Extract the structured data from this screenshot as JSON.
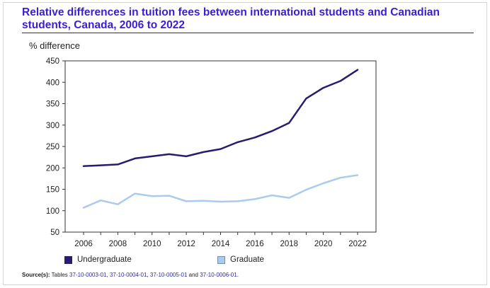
{
  "title": "Relative differences in tuition fees between international students and Canadian students, Canada, 2006 to 2022",
  "y_axis_label": "% difference",
  "legend": {
    "undergraduate": "Undergraduate",
    "graduate": "Graduate"
  },
  "source": {
    "label": "Source(s):",
    "prefix": "Tables",
    "table_1": "37-10-0003-01",
    "sep_1": ",",
    "table_2": "37-10-0004-01",
    "sep_2": ",",
    "table_3": "37-10-0005-01",
    "sep_3": "and",
    "table_4": "37-10-0006-01",
    "end": "."
  },
  "colors": {
    "undergraduate": "#2b1a6e",
    "graduate": "#a9cbee",
    "title": "#3d1dd6"
  },
  "chart_data": {
    "type": "line",
    "title": "Relative differences in tuition fees between international students and Canadian students, Canada, 2006 to 2022",
    "ylabel": "% difference",
    "xlabel": "",
    "x": [
      2006,
      2007,
      2008,
      2009,
      2010,
      2011,
      2012,
      2013,
      2014,
      2015,
      2016,
      2017,
      2018,
      2019,
      2020,
      2021,
      2022
    ],
    "x_ticks": [
      2006,
      2008,
      2010,
      2012,
      2014,
      2016,
      2018,
      2020,
      2022
    ],
    "y_ticks": [
      50,
      100,
      150,
      200,
      250,
      300,
      350,
      400,
      450
    ],
    "ylim": [
      50,
      450
    ],
    "grid": false,
    "legend_position": "bottom-left",
    "series": [
      {
        "name": "Undergraduate",
        "color": "#2b1a6e",
        "values": [
          204,
          206,
          208,
          222,
          227,
          232,
          227,
          237,
          244,
          260,
          271,
          286,
          305,
          362,
          387,
          403,
          429
        ]
      },
      {
        "name": "Graduate",
        "color": "#a9cbee",
        "values": [
          107,
          124,
          115,
          140,
          134,
          135,
          122,
          123,
          121,
          122,
          127,
          136,
          130,
          149,
          164,
          177,
          183
        ]
      }
    ]
  }
}
